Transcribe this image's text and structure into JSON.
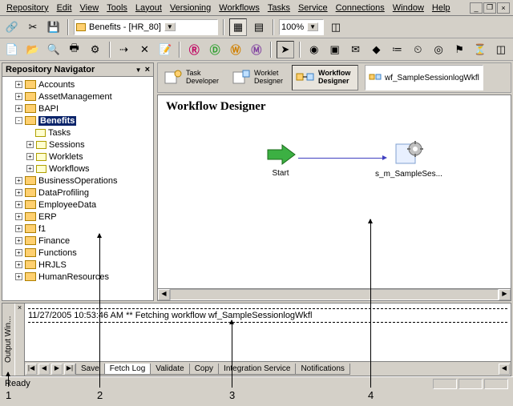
{
  "menu": [
    "Repository",
    "Edit",
    "View",
    "Tools",
    "Layout",
    "Versioning",
    "Workflows",
    "Tasks",
    "Service",
    "Connections",
    "Window",
    "Help"
  ],
  "combo": {
    "text": "Benefits - [HR_80]",
    "zoom": "100%"
  },
  "navigator": {
    "title": "Repository Navigator",
    "items": [
      {
        "l": 1,
        "t": "+",
        "k": "f",
        "n": "Accounts"
      },
      {
        "l": 1,
        "t": "+",
        "k": "f",
        "n": "AssetManagement"
      },
      {
        "l": 1,
        "t": "+",
        "k": "f",
        "n": "BAPI"
      },
      {
        "l": 1,
        "t": "-",
        "k": "f",
        "n": "Benefits",
        "sel": true
      },
      {
        "l": 2,
        "t": "",
        "k": "s",
        "n": "Tasks"
      },
      {
        "l": 2,
        "t": "+",
        "k": "s",
        "n": "Sessions"
      },
      {
        "l": 2,
        "t": "+",
        "k": "s",
        "n": "Worklets"
      },
      {
        "l": 2,
        "t": "+",
        "k": "s",
        "n": "Workflows"
      },
      {
        "l": 1,
        "t": "+",
        "k": "f",
        "n": "BusinessOperations"
      },
      {
        "l": 1,
        "t": "+",
        "k": "f",
        "n": "DataProfiling"
      },
      {
        "l": 1,
        "t": "+",
        "k": "f",
        "n": "EmployeeData"
      },
      {
        "l": 1,
        "t": "+",
        "k": "f",
        "n": "ERP"
      },
      {
        "l": 1,
        "t": "+",
        "k": "f",
        "n": "f1"
      },
      {
        "l": 1,
        "t": "+",
        "k": "f",
        "n": "Finance"
      },
      {
        "l": 1,
        "t": "+",
        "k": "f",
        "n": "Functions"
      },
      {
        "l": 1,
        "t": "+",
        "k": "f",
        "n": "HRJLS"
      },
      {
        "l": 1,
        "t": "+",
        "k": "f",
        "n": "HumanResources"
      }
    ]
  },
  "designers": {
    "task": "Task Developer",
    "worklet": "Worklet Designer",
    "workflow": "Workflow Designer",
    "wf_open": "wf_SampleSessionlogWkfl"
  },
  "canvas": {
    "title": "Workflow Designer",
    "start": "Start",
    "session": "s_m_SampleSes..."
  },
  "output": {
    "title": "Output Win...",
    "log": "11/27/2005 10:53:46 AM ** Fetching workflow wf_SampleSessionlogWkfl",
    "tabs": [
      "Save",
      "Fetch Log",
      "Validate",
      "Copy",
      "Integration Service",
      "Notifications"
    ],
    "active_tab": 1
  },
  "status": "Ready",
  "annotations": [
    "1",
    "2",
    "3",
    "4"
  ],
  "colors": {
    "sel_bg": "#0a246a",
    "folder": "#ffd070",
    "link": "#4040c0",
    "start": "#3cb043",
    "gear": "#a0a0a0"
  }
}
